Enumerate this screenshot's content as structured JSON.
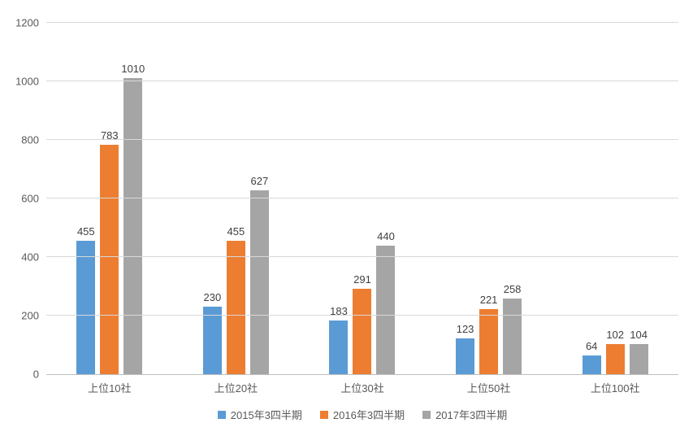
{
  "chart_data": {
    "type": "bar",
    "title": "",
    "categories": [
      "上位10社",
      "上位20社",
      "上位30社",
      "上位50社",
      "上位100社"
    ],
    "series": [
      {
        "name": "2015年3四半期",
        "color": "#5B9BD5",
        "values": [
          455,
          230,
          183,
          123,
          64
        ]
      },
      {
        "name": "2016年3四半期",
        "color": "#ED7D31",
        "values": [
          783,
          455,
          291,
          221,
          102
        ]
      },
      {
        "name": "2017年3四半期",
        "color": "#A5A5A5",
        "values": [
          1010,
          627,
          440,
          258,
          104
        ]
      }
    ],
    "ylim": [
      0,
      1200
    ],
    "yticks": [
      0,
      200,
      400,
      600,
      800,
      1000,
      1200
    ],
    "grid": true,
    "legend_position": "bottom",
    "colors": {
      "gridline": "#d9d9d9",
      "axis_line": "#bfbfbf",
      "tick_text": "#595959",
      "value_text": "#404040"
    }
  }
}
